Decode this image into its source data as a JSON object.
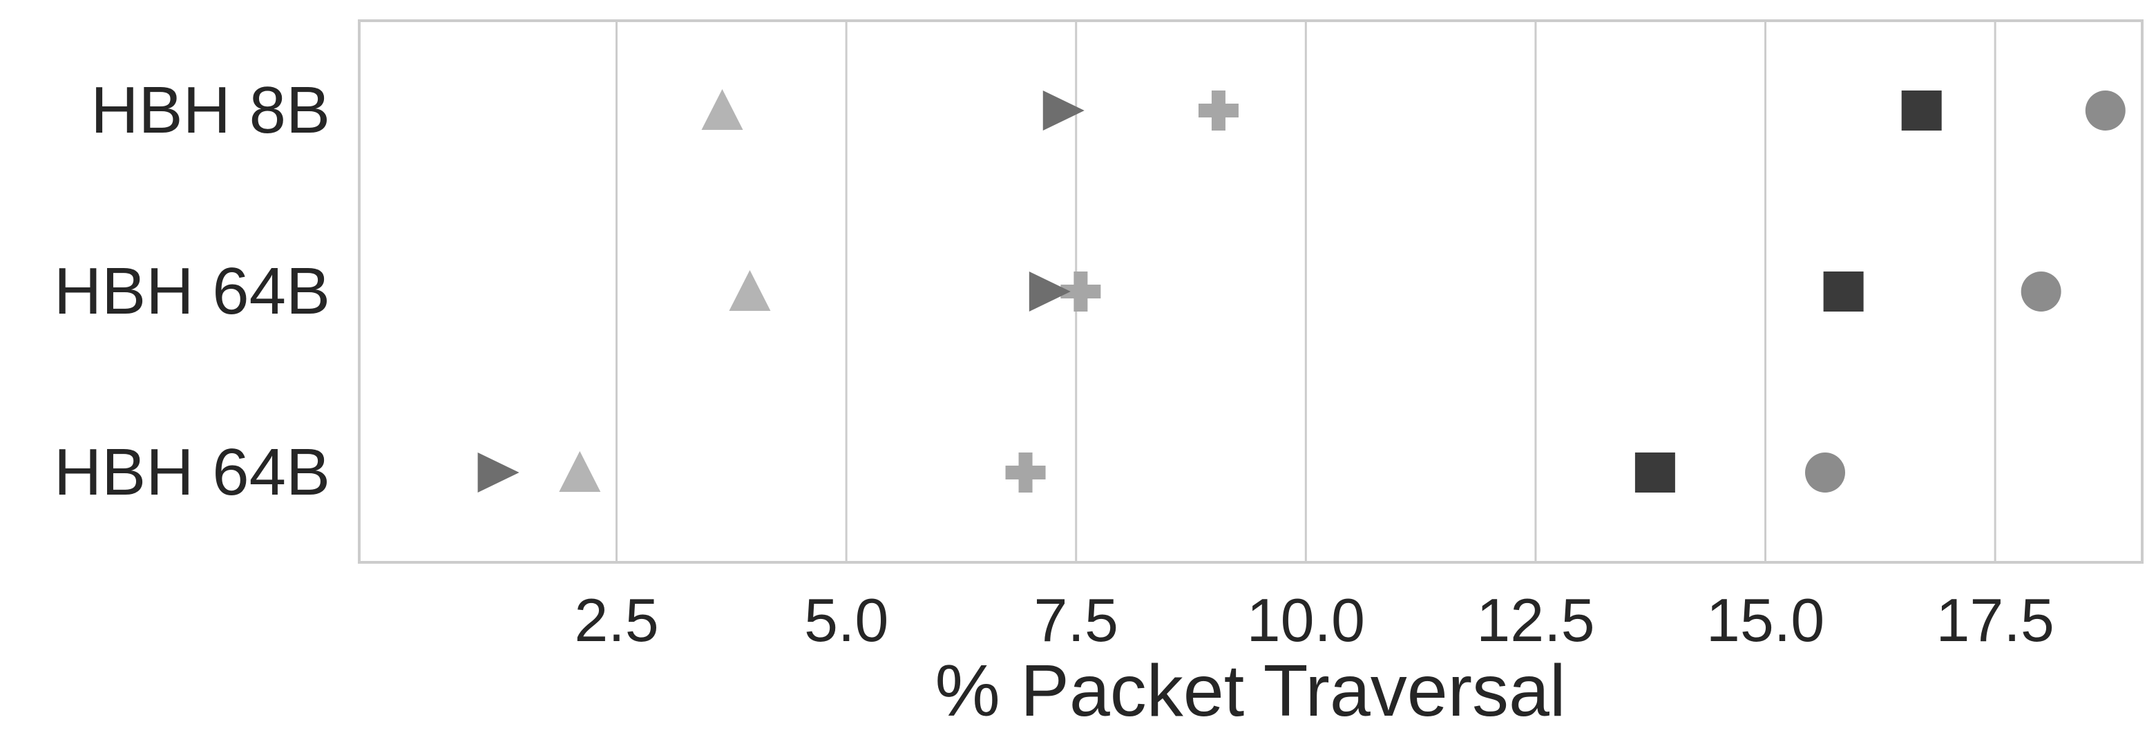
{
  "chart_data": {
    "type": "scatter",
    "title": "",
    "xlabel": "% Packet Traversal",
    "ylabel": "",
    "xlim": [
      -0.3,
      19.1
    ],
    "x_ticks": [
      "2.5",
      "5.0",
      "7.5",
      "10.0",
      "12.5",
      "15.0",
      "17.5"
    ],
    "x_tick_values": [
      2.5,
      5.0,
      7.5,
      10.0,
      12.5,
      15.0,
      17.5
    ],
    "categories": [
      "HBH 8B",
      "HBH 64B",
      "HBH 64B"
    ],
    "grid": true,
    "legend": "none",
    "series": [
      {
        "marker": "circle",
        "color": "#8c8c8c",
        "values": [
          18.7,
          18.0,
          15.65
        ]
      },
      {
        "marker": "square",
        "color": "#3a3a3a",
        "values": [
          16.7,
          15.85,
          13.8
        ]
      },
      {
        "marker": "plus",
        "color": "#a6a6a6",
        "values": [
          9.05,
          7.55,
          6.95
        ]
      },
      {
        "marker": "triangle-right",
        "color": "#6e6e6e",
        "values": [
          7.35,
          7.2,
          1.2
        ]
      },
      {
        "marker": "triangle-up",
        "color": "#b4b4b4",
        "values": [
          3.65,
          3.95,
          2.1
        ]
      }
    ]
  }
}
